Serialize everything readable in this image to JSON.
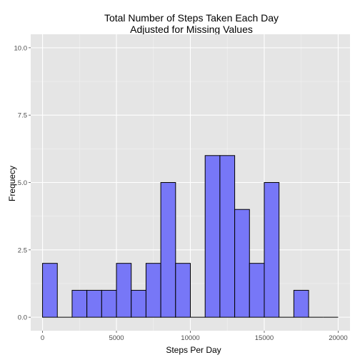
{
  "chart_data": {
    "type": "bar",
    "title": [
      "Total Number of Steps Taken Each Day",
      "Adjusted for Missing Values"
    ],
    "xlabel": "Steps Per Day",
    "ylabel": "Frequecy",
    "x_ticks": [
      0,
      5000,
      10000,
      15000,
      20000
    ],
    "x_tick_labels": [
      "0",
      "5000",
      "10000",
      "15000",
      "20000"
    ],
    "y_ticks": [
      0,
      2.5,
      5,
      7.5,
      10
    ],
    "y_tick_labels": [
      "0.0",
      "2.5",
      "5.0",
      "7.5",
      "10.0"
    ],
    "xlim": [
      -800,
      20800
    ],
    "ylim": [
      -0.5,
      10.5
    ],
    "bin_width": 1000,
    "bins": [
      {
        "start": 0,
        "count": 2
      },
      {
        "start": 1000,
        "count": 0
      },
      {
        "start": 2000,
        "count": 1
      },
      {
        "start": 3000,
        "count": 1
      },
      {
        "start": 4000,
        "count": 1
      },
      {
        "start": 5000,
        "count": 2
      },
      {
        "start": 6000,
        "count": 1
      },
      {
        "start": 7000,
        "count": 2
      },
      {
        "start": 8000,
        "count": 5
      },
      {
        "start": 9000,
        "count": 2
      },
      {
        "start": 10000,
        "count": 0
      },
      {
        "start": 11000,
        "count": 6
      },
      {
        "start": 12000,
        "count": 6
      },
      {
        "start": 13000,
        "count": 4
      },
      {
        "start": 14000,
        "count": 2
      },
      {
        "start": 15000,
        "count": 5
      },
      {
        "start": 16000,
        "count": 0
      },
      {
        "start": 17000,
        "count": 1
      },
      {
        "start": 18000,
        "count": 0
      },
      {
        "start": 19000,
        "count": 0
      }
    ],
    "grid": true,
    "colors": {
      "panel": "#e5e5e5",
      "grid_major": "#ffffff",
      "grid_minor": "#f2f2f2",
      "bar_fill": "#7777f7",
      "bar_stroke": "#000000"
    }
  }
}
